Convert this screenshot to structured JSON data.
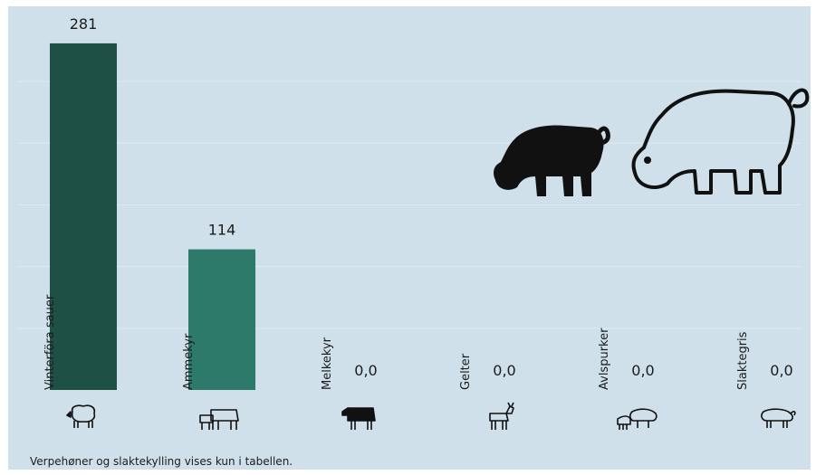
{
  "chart_data": {
    "type": "bar",
    "categories": [
      "Vinterföra sauer",
      "Ammekyr",
      "Melkekyr",
      "Gelter",
      "Avlspurker",
      "Slaktegris"
    ],
    "values": [
      281,
      114,
      0,
      0,
      0,
      0
    ],
    "value_labels": [
      "281",
      "114",
      "0,0",
      "0,0",
      "0,0",
      "0,0"
    ],
    "category_icons": [
      "sheep-icon",
      "suckler-cow-with-calf-icon",
      "dairy-cow-icon",
      "goat-icon",
      "sow-with-piglets-icon",
      "pig-icon"
    ],
    "bar_colors": [
      "#1f5045",
      "#2e7a6a",
      "#2e7a6a",
      "#2e7a6a",
      "#2e7a6a",
      "#2e7a6a"
    ],
    "ylim": [
      0,
      300
    ],
    "grid": true,
    "axis_labels_shown": false,
    "legend": "none",
    "footnote": "Verpehøner og slaktekylling vises kun i tabellen."
  },
  "decorative_icons": [
    "pig-solid-icon",
    "pig-outline-icon"
  ],
  "colors": {
    "background": "#cfe0ea",
    "gridline": "#dde9f0",
    "text": "#1b1b1b",
    "icon": "#111111"
  }
}
